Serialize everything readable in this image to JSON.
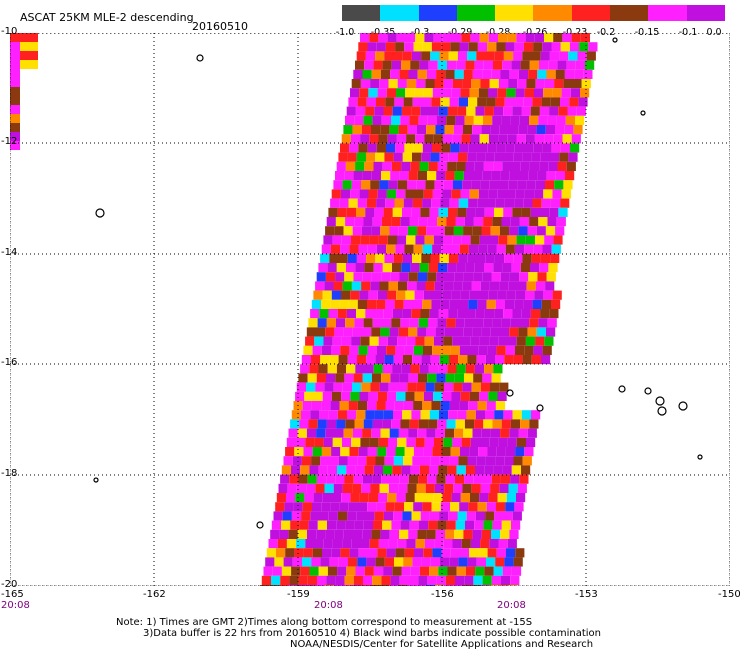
{
  "header": {
    "title": "ASCAT 25KM MLE-2 descending",
    "date": "20160510"
  },
  "colorbar": {
    "labels": [
      "-1.0",
      "-0.35",
      "-0.3",
      "-0.29",
      "-0.28",
      "-0.26",
      "-0.23",
      "-0.2",
      "-0.15",
      "-0.1",
      "0.0"
    ],
    "colors": [
      "#4a4a4a",
      "#00e0ff",
      "#1f3fff",
      "#00c000",
      "#ffe000",
      "#ff8a00",
      "#ff2020",
      "#8b3a10",
      "#ff20ff",
      "#c010e0"
    ]
  },
  "axes": {
    "lat_labels": [
      "-10",
      "-12",
      "-14",
      "-16",
      "-18",
      "-20"
    ],
    "lon_labels": [
      "-165",
      "-162",
      "-159",
      "-156",
      "-153",
      "-150"
    ],
    "time_labels": [
      "20:08",
      "20:08",
      "20:08"
    ]
  },
  "notes": {
    "line1": "Note: 1) Times are GMT 2)Times along bottom correspond to measurement at -15S",
    "line2": "3)Data buffer is 22 hrs from 20160510 4) Black wind barbs indicate possible contamination",
    "line3": "NOAA/NESDIS/Center for Satellite Applications and Research"
  }
}
